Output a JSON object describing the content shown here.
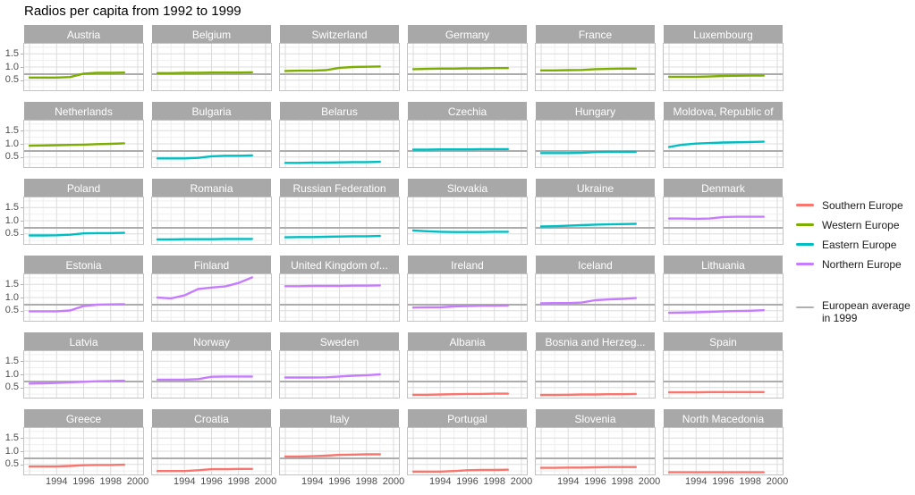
{
  "title": "Radios per capita from 1992 to 1999",
  "legend": {
    "items": [
      {
        "label": "Southern Europe",
        "color": "#F8766D"
      },
      {
        "label": "Western Europe",
        "color": "#7CAE00"
      },
      {
        "label": "Eastern Europe",
        "color": "#00BFC4"
      },
      {
        "label": "Northern Europe",
        "color": "#C77CFF"
      }
    ],
    "average_item": {
      "label_line1": "European average",
      "label_line2": " in 1999",
      "color": "#B0B0B0"
    }
  },
  "chart_data": {
    "type": "line",
    "title": "Radios per capita from 1992 to 1999",
    "x": [
      1992,
      1993,
      1994,
      1995,
      1996,
      1997,
      1998,
      1999
    ],
    "xlim": [
      1991.6,
      2000.4
    ],
    "ylim": [
      0.12,
      1.88
    ],
    "x_major_ticks": [
      1992,
      1994,
      1996,
      1998,
      2000
    ],
    "x_minor_ticks": [
      1993,
      1995,
      1997,
      1999
    ],
    "x_tick_labels": [
      "1994",
      "1996",
      "1998",
      "2000"
    ],
    "x_tick_label_values": [
      1994,
      1996,
      1998,
      2000
    ],
    "y_major_ticks": [
      0.5,
      1.0,
      1.5
    ],
    "y_minor_ticks": [
      0.25,
      0.75,
      1.25,
      1.75
    ],
    "y_tick_labels": [
      "0.5",
      "1.0",
      "1.5"
    ],
    "grid": true,
    "legend_position": "right",
    "european_average_1999": 0.73,
    "region_colors": {
      "Southern Europe": "#F8766D",
      "Western Europe": "#7CAE00",
      "Eastern Europe": "#00BFC4",
      "Northern Europe": "#C77CFF"
    },
    "average_line_color": "#ACACAC",
    "grid_major_color": "#DCDCDC",
    "grid_minor_color": "#EFEFEF",
    "facets": [
      {
        "name": "Austria",
        "region": "Western Europe",
        "values": [
          0.6,
          0.6,
          0.6,
          0.62,
          0.75,
          0.78,
          0.78,
          0.79
        ]
      },
      {
        "name": "Belgium",
        "region": "Western Europe",
        "values": [
          0.77,
          0.77,
          0.78,
          0.78,
          0.79,
          0.79,
          0.79,
          0.8
        ]
      },
      {
        "name": "Switzerland",
        "region": "Western Europe",
        "values": [
          0.85,
          0.86,
          0.86,
          0.88,
          0.97,
          1.0,
          1.01,
          1.02
        ]
      },
      {
        "name": "Germany",
        "region": "Western Europe",
        "values": [
          0.92,
          0.93,
          0.94,
          0.94,
          0.95,
          0.95,
          0.96,
          0.96
        ]
      },
      {
        "name": "France",
        "region": "Western Europe",
        "values": [
          0.87,
          0.87,
          0.88,
          0.89,
          0.92,
          0.93,
          0.94,
          0.94
        ]
      },
      {
        "name": "Luxembourg",
        "region": "Western Europe",
        "values": [
          0.63,
          0.63,
          0.63,
          0.64,
          0.66,
          0.67,
          0.68,
          0.68
        ]
      },
      {
        "name": "Netherlands",
        "region": "Western Europe",
        "values": [
          0.93,
          0.94,
          0.95,
          0.96,
          0.97,
          0.99,
          1.0,
          1.02
        ]
      },
      {
        "name": "Bulgaria",
        "region": "Eastern Europe",
        "values": [
          0.45,
          0.45,
          0.45,
          0.47,
          0.53,
          0.55,
          0.55,
          0.56
        ]
      },
      {
        "name": "Belarus",
        "region": "Eastern Europe",
        "values": [
          0.28,
          0.28,
          0.29,
          0.29,
          0.3,
          0.31,
          0.31,
          0.32
        ]
      },
      {
        "name": "Czechia",
        "region": "Eastern Europe",
        "values": [
          0.78,
          0.78,
          0.79,
          0.79,
          0.79,
          0.8,
          0.8,
          0.8
        ]
      },
      {
        "name": "Hungary",
        "region": "Eastern Europe",
        "values": [
          0.65,
          0.65,
          0.65,
          0.66,
          0.69,
          0.7,
          0.7,
          0.7
        ]
      },
      {
        "name": "Moldova, Republic of",
        "region": "Eastern Europe",
        "values": [
          0.88,
          0.97,
          1.01,
          1.03,
          1.05,
          1.06,
          1.07,
          1.08
        ]
      },
      {
        "name": "Poland",
        "region": "Eastern Europe",
        "values": [
          0.44,
          0.44,
          0.45,
          0.47,
          0.52,
          0.53,
          0.53,
          0.54
        ]
      },
      {
        "name": "Romania",
        "region": "Eastern Europe",
        "values": [
          0.29,
          0.29,
          0.3,
          0.3,
          0.3,
          0.31,
          0.31,
          0.31
        ]
      },
      {
        "name": "Russian Federation",
        "region": "Eastern Europe",
        "values": [
          0.37,
          0.38,
          0.38,
          0.39,
          0.4,
          0.41,
          0.41,
          0.42
        ]
      },
      {
        "name": "Slovakia",
        "region": "Eastern Europe",
        "values": [
          0.63,
          0.6,
          0.58,
          0.57,
          0.57,
          0.57,
          0.58,
          0.58
        ]
      },
      {
        "name": "Ukraine",
        "region": "Eastern Europe",
        "values": [
          0.78,
          0.79,
          0.81,
          0.83,
          0.85,
          0.86,
          0.87,
          0.88
        ]
      },
      {
        "name": "Denmark",
        "region": "Northern Europe",
        "values": [
          1.08,
          1.08,
          1.07,
          1.08,
          1.14,
          1.15,
          1.15,
          1.15
        ]
      },
      {
        "name": "Estonia",
        "region": "Northern Europe",
        "values": [
          0.48,
          0.48,
          0.48,
          0.51,
          0.68,
          0.73,
          0.74,
          0.75
        ]
      },
      {
        "name": "Finland",
        "region": "Northern Europe",
        "values": [
          1.0,
          0.97,
          1.08,
          1.32,
          1.38,
          1.42,
          1.55,
          1.76
        ]
      },
      {
        "name": "United Kingdom of...",
        "region": "Northern Europe",
        "values": [
          1.43,
          1.43,
          1.44,
          1.44,
          1.44,
          1.45,
          1.45,
          1.46
        ]
      },
      {
        "name": "Ireland",
        "region": "Northern Europe",
        "values": [
          0.62,
          0.63,
          0.63,
          0.66,
          0.68,
          0.69,
          0.69,
          0.7
        ]
      },
      {
        "name": "Iceland",
        "region": "Northern Europe",
        "values": [
          0.78,
          0.79,
          0.79,
          0.81,
          0.9,
          0.93,
          0.95,
          0.98
        ]
      },
      {
        "name": "Lithuania",
        "region": "Northern Europe",
        "values": [
          0.42,
          0.43,
          0.44,
          0.46,
          0.48,
          0.49,
          0.5,
          0.52
        ]
      },
      {
        "name": "Latvia",
        "region": "Northern Europe",
        "values": [
          0.65,
          0.66,
          0.68,
          0.7,
          0.72,
          0.74,
          0.75,
          0.76
        ]
      },
      {
        "name": "Norway",
        "region": "Northern Europe",
        "values": [
          0.8,
          0.8,
          0.8,
          0.82,
          0.91,
          0.92,
          0.92,
          0.92
        ]
      },
      {
        "name": "Sweden",
        "region": "Northern Europe",
        "values": [
          0.88,
          0.88,
          0.88,
          0.89,
          0.92,
          0.95,
          0.97,
          1.0
        ]
      },
      {
        "name": "Albania",
        "region": "Southern Europe",
        "values": [
          0.23,
          0.23,
          0.24,
          0.25,
          0.26,
          0.26,
          0.27,
          0.27
        ]
      },
      {
        "name": "Bosnia and Herzeg...",
        "region": "Southern Europe",
        "values": [
          0.22,
          0.22,
          0.23,
          0.24,
          0.24,
          0.25,
          0.25,
          0.26
        ]
      },
      {
        "name": "Spain",
        "region": "Southern Europe",
        "values": [
          0.32,
          0.32,
          0.32,
          0.33,
          0.33,
          0.33,
          0.33,
          0.33
        ]
      },
      {
        "name": "Greece",
        "region": "Southern Europe",
        "values": [
          0.42,
          0.42,
          0.42,
          0.44,
          0.47,
          0.48,
          0.48,
          0.49
        ]
      },
      {
        "name": "Croatia",
        "region": "Southern Europe",
        "values": [
          0.25,
          0.25,
          0.25,
          0.28,
          0.32,
          0.32,
          0.33,
          0.33
        ]
      },
      {
        "name": "Italy",
        "region": "Southern Europe",
        "values": [
          0.8,
          0.8,
          0.81,
          0.83,
          0.86,
          0.87,
          0.88,
          0.88
        ]
      },
      {
        "name": "Portugal",
        "region": "Southern Europe",
        "values": [
          0.23,
          0.23,
          0.23,
          0.25,
          0.28,
          0.29,
          0.29,
          0.3
        ]
      },
      {
        "name": "Slovenia",
        "region": "Southern Europe",
        "values": [
          0.37,
          0.37,
          0.38,
          0.38,
          0.39,
          0.4,
          0.4,
          0.4
        ]
      },
      {
        "name": "North Macedonia",
        "region": "Southern Europe",
        "values": [
          0.2,
          0.2,
          0.2,
          0.2,
          0.2,
          0.2,
          0.2,
          0.2
        ]
      }
    ]
  }
}
